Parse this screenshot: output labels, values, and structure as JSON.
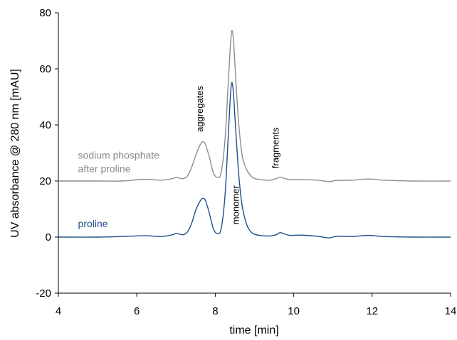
{
  "chart_data": {
    "type": "line",
    "title": "",
    "xlabel": "time [min]",
    "ylabel": "UV absorbance @ 280 nm [mAU]",
    "xlim": [
      4,
      14
    ],
    "ylim": [
      -20,
      80
    ],
    "x_ticks": [
      4,
      6,
      8,
      10,
      12,
      14
    ],
    "y_ticks": [
      -20,
      0,
      20,
      40,
      60,
      80
    ],
    "grid": false,
    "legend": "none",
    "series": [
      {
        "name": "sodium phosphate\nafter proline",
        "color": "#8c8c8c",
        "x": [
          4.0,
          5.0,
          5.6,
          6.2,
          6.6,
          6.9,
          7.0,
          7.1,
          7.2,
          7.3,
          7.4,
          7.5,
          7.6,
          7.68,
          7.75,
          7.85,
          7.95,
          8.05,
          8.15,
          8.25,
          8.32,
          8.38,
          8.42,
          8.46,
          8.5,
          8.55,
          8.6,
          8.65,
          8.7,
          8.8,
          8.9,
          9.0,
          9.2,
          9.4,
          9.55,
          9.65,
          9.75,
          9.9,
          10.2,
          10.6,
          10.9,
          11.1,
          11.5,
          11.9,
          12.3,
          13.0,
          14.0
        ],
        "y": [
          20.0,
          20.0,
          20.0,
          20.6,
          20.3,
          20.8,
          21.3,
          21.0,
          20.9,
          22.0,
          25.0,
          29.0,
          32.5,
          34.0,
          33.0,
          28.5,
          23.0,
          21.3,
          23.0,
          35.0,
          52.0,
          67.0,
          73.5,
          71.0,
          62.0,
          50.0,
          40.0,
          33.0,
          28.0,
          24.0,
          22.0,
          20.9,
          20.4,
          20.3,
          20.8,
          21.4,
          21.0,
          20.5,
          20.5,
          20.3,
          19.8,
          20.2,
          20.3,
          20.7,
          20.3,
          20.0,
          20.0
        ]
      },
      {
        "name": "proline",
        "color": "#1f4e8c",
        "x": [
          4.0,
          5.0,
          5.6,
          6.2,
          6.6,
          6.9,
          7.0,
          7.1,
          7.2,
          7.3,
          7.4,
          7.5,
          7.6,
          7.68,
          7.75,
          7.85,
          7.95,
          8.05,
          8.15,
          8.25,
          8.32,
          8.38,
          8.42,
          8.46,
          8.5,
          8.55,
          8.6,
          8.65,
          8.7,
          8.8,
          8.9,
          9.0,
          9.2,
          9.4,
          9.55,
          9.65,
          9.75,
          9.9,
          10.2,
          10.6,
          10.9,
          11.1,
          11.5,
          11.9,
          12.3,
          13.0,
          14.0
        ],
        "y": [
          0.0,
          0.0,
          0.2,
          0.5,
          0.2,
          0.8,
          1.3,
          1.0,
          0.9,
          2.0,
          5.0,
          9.5,
          12.5,
          13.8,
          13.0,
          8.5,
          3.0,
          1.3,
          3.0,
          15.0,
          33.0,
          49.0,
          55.0,
          52.0,
          43.0,
          32.0,
          22.0,
          15.0,
          10.0,
          4.5,
          2.0,
          1.0,
          0.5,
          0.4,
          0.8,
          1.6,
          1.2,
          0.6,
          0.7,
          0.3,
          -0.3,
          0.3,
          0.2,
          0.6,
          0.2,
          0.0,
          0.0
        ]
      }
    ],
    "annotations": [
      {
        "text": "aggregates",
        "x": 7.68,
        "y": 37.5,
        "rotation": -90
      },
      {
        "text": "monomer",
        "x": 8.6,
        "y": 4.5,
        "rotation": -90
      },
      {
        "text": "fragments",
        "x": 9.62,
        "y": 24.5,
        "rotation": -90
      }
    ],
    "series_labels": [
      {
        "series": 0,
        "x": 4.5,
        "y": 28.0
      },
      {
        "series": 1,
        "x": 4.5,
        "y": 3.5
      }
    ]
  }
}
